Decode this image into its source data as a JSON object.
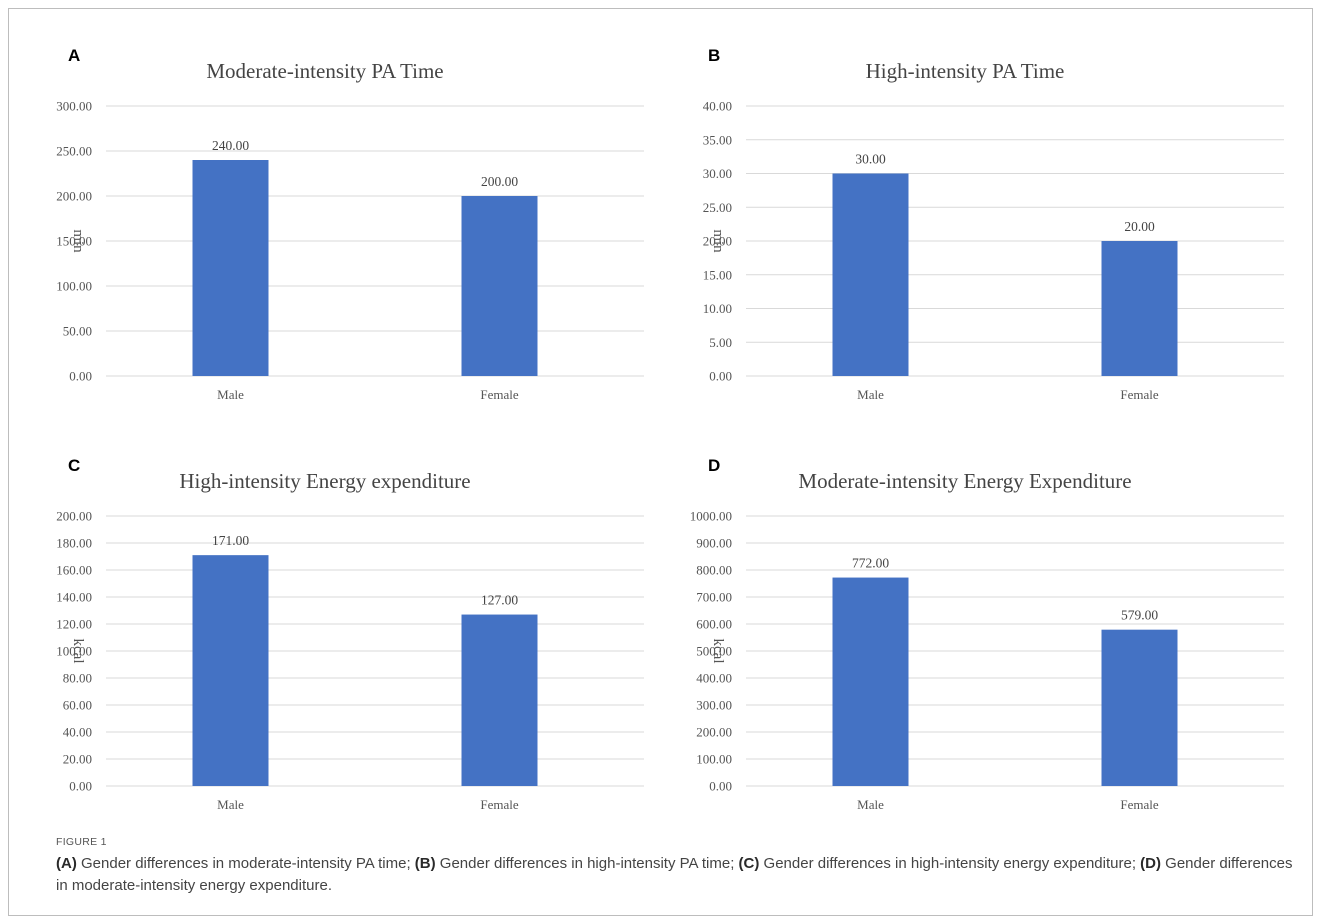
{
  "figure": {
    "label": "FIGURE 1",
    "caption_parts": [
      {
        "tag": "(A)",
        "text": " Gender differences in moderate-intensity PA time; "
      },
      {
        "tag": "(B)",
        "text": " Gender differences in high-intensity PA time; "
      },
      {
        "tag": "(C)",
        "text": " Gender differences in high-intensity energy expenditure; "
      },
      {
        "tag": "(D)",
        "text": " Gender differences in moderate-intensity energy expenditure."
      }
    ]
  },
  "colors": {
    "bar": "#4472C4",
    "grid": "#d9d9d9",
    "text": "#555555"
  },
  "chart_data": [
    {
      "panel": "A",
      "type": "bar",
      "title": "Moderate-intensity  PA Time",
      "ylabel": "min",
      "xlabel": "",
      "categories": [
        "Male",
        "Female"
      ],
      "values": [
        240,
        200
      ],
      "value_labels": [
        "240.00",
        "200.00"
      ],
      "ylim": [
        0,
        300
      ],
      "yticks": [
        0,
        50,
        100,
        150,
        200,
        250,
        300
      ],
      "ytick_labels": [
        "0.00",
        "50.00",
        "100.00",
        "150.00",
        "200.00",
        "250.00",
        "300.00"
      ],
      "grid": true,
      "legend": "none"
    },
    {
      "panel": "B",
      "type": "bar",
      "title": "High-intensity  PA Time",
      "ylabel": "min",
      "xlabel": "",
      "categories": [
        "Male",
        "Female"
      ],
      "values": [
        30,
        20
      ],
      "value_labels": [
        "30.00",
        "20.00"
      ],
      "ylim": [
        0,
        40
      ],
      "yticks": [
        0,
        5,
        10,
        15,
        20,
        25,
        30,
        35,
        40
      ],
      "ytick_labels": [
        "0.00",
        "5.00",
        "10.00",
        "15.00",
        "20.00",
        "25.00",
        "30.00",
        "35.00",
        "40.00"
      ],
      "grid": true,
      "legend": "none"
    },
    {
      "panel": "C",
      "type": "bar",
      "title": "High-intensity  Energy expenditure",
      "ylabel": "kcal",
      "xlabel": "",
      "categories": [
        "Male",
        "Female"
      ],
      "values": [
        171,
        127
      ],
      "value_labels": [
        "171.00",
        "127.00"
      ],
      "ylim": [
        0,
        200
      ],
      "yticks": [
        0,
        20,
        40,
        60,
        80,
        100,
        120,
        140,
        160,
        180,
        200
      ],
      "ytick_labels": [
        "0.00",
        "20.00",
        "40.00",
        "60.00",
        "80.00",
        "100.00",
        "120.00",
        "140.00",
        "160.00",
        "180.00",
        "200.00"
      ],
      "grid": true,
      "legend": "none"
    },
    {
      "panel": "D",
      "type": "bar",
      "title": "Moderate-intensity  Energy Expenditure",
      "ylabel": "kcal",
      "xlabel": "",
      "categories": [
        "Male",
        "Female"
      ],
      "values": [
        772,
        579
      ],
      "value_labels": [
        "772.00",
        "579.00"
      ],
      "ylim": [
        0,
        1000
      ],
      "yticks": [
        0,
        100,
        200,
        300,
        400,
        500,
        600,
        700,
        800,
        900,
        1000
      ],
      "ytick_labels": [
        "0.00",
        "100.00",
        "200.00",
        "300.00",
        "400.00",
        "500.00",
        "600.00",
        "700.00",
        "800.00",
        "900.00",
        "1000.00"
      ],
      "grid": true,
      "legend": "none"
    }
  ]
}
